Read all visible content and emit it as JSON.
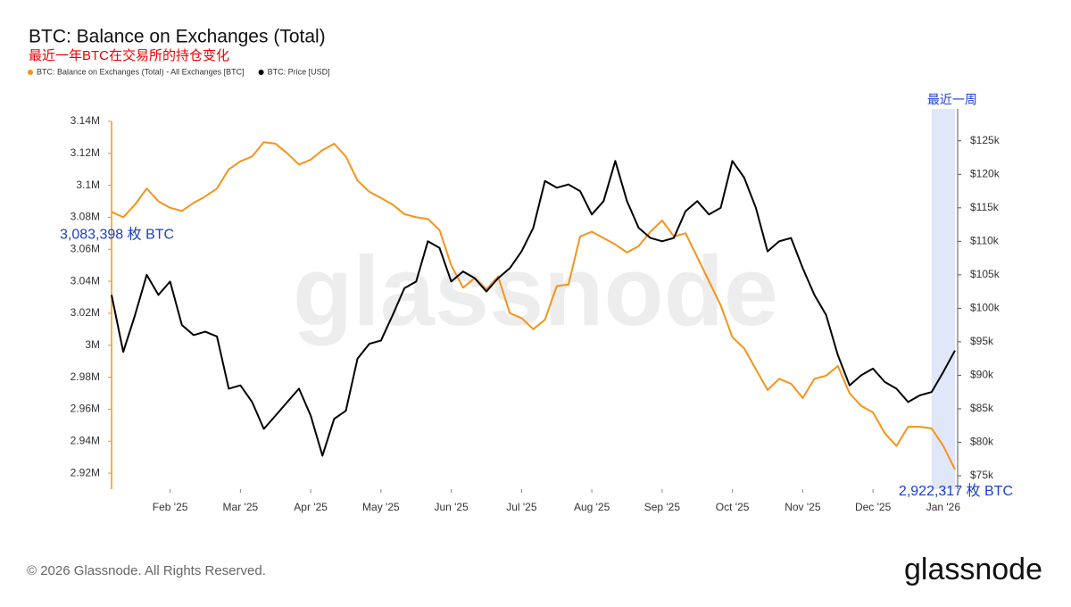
{
  "chart_data": {
    "type": "line",
    "title": "BTC: Balance on Exchanges (Total)",
    "subtitle": "最近一年BTC在交易所的持仓变化",
    "categories": [
      null,
      null,
      null,
      null,
      null,
      "Feb '25",
      null,
      null,
      null,
      null,
      null,
      "Mar '25",
      null,
      null,
      null,
      null,
      null,
      "Apr '25",
      null,
      null,
      null,
      null,
      null,
      "May '25",
      null,
      null,
      null,
      null,
      null,
      "Jun '25",
      null,
      null,
      null,
      null,
      null,
      "Jul '25",
      null,
      null,
      null,
      null,
      null,
      "Aug '25",
      null,
      null,
      null,
      null,
      null,
      "Sep '25",
      null,
      null,
      null,
      null,
      null,
      "Oct '25",
      null,
      null,
      null,
      null,
      null,
      "Nov '25",
      null,
      null,
      null,
      null,
      null,
      "Dec '25",
      null,
      null,
      null,
      null,
      null,
      "Jan '26",
      null
    ],
    "series": [
      {
        "name": "BTC: Balance on Exchanges (Total) - All Exchanges [BTC]",
        "color": "#f7931a",
        "values": [
          3083398,
          3080000,
          3088000,
          3098000,
          3090000,
          3086000,
          3084000,
          3089000,
          3093000,
          3098000,
          3110000,
          3115000,
          3118000,
          3127000,
          3126000,
          3120000,
          3113000,
          3116000,
          3122000,
          3126000,
          3118000,
          3103000,
          3096000,
          3092000,
          3088000,
          3082000,
          3080000,
          3079000,
          3072000,
          3050000,
          3036000,
          3042000,
          3035000,
          3043000,
          3020000,
          3017000,
          3010000,
          3016000,
          3037000,
          3038000,
          3068000,
          3071000,
          3067000,
          3063000,
          3058000,
          3062000,
          3071000,
          3078000,
          3068000,
          3070000,
          3055000,
          3040000,
          3025000,
          3005000,
          2998000,
          2985000,
          2972000,
          2979000,
          2976000,
          2967000,
          2979000,
          2981000,
          2987000,
          2970000,
          2962000,
          2958000,
          2945000,
          2937000,
          2949000,
          2949000,
          2948000,
          2937000,
          2922317
        ]
      },
      {
        "name": "BTC: Price [USD]",
        "color": "#000000",
        "axis": "y2",
        "values": [
          102000,
          93500,
          99000,
          105000,
          102000,
          104000,
          97500,
          96000,
          96500,
          95800,
          88000,
          88500,
          86000,
          82000,
          84000,
          86000,
          88000,
          84000,
          78000,
          83500,
          84700,
          92500,
          94700,
          95200,
          99000,
          103000,
          104000,
          110000,
          109000,
          104000,
          105500,
          104500,
          102500,
          104500,
          106000,
          108500,
          112000,
          119000,
          118000,
          118500,
          117500,
          114000,
          116000,
          122000,
          116000,
          112000,
          110500,
          110000,
          110500,
          114500,
          116000,
          114000,
          115000,
          122000,
          119500,
          115000,
          108500,
          110000,
          110500,
          106000,
          102000,
          99000,
          93000,
          88500,
          90000,
          91000,
          89000,
          88000,
          86000,
          87000,
          87500,
          90500,
          93700
        ]
      }
    ],
    "ylim": [
      2910000,
      3150000
    ],
    "yticks": [
      {
        "value": 2920000,
        "label": "2.92M"
      },
      {
        "value": 2940000,
        "label": "2.94M"
      },
      {
        "value": 2960000,
        "label": "2.96M"
      },
      {
        "value": 2980000,
        "label": "2.98M"
      },
      {
        "value": 3000000,
        "label": "3M"
      },
      {
        "value": 3020000,
        "label": "3.02M"
      },
      {
        "value": 3040000,
        "label": "3.04M"
      },
      {
        "value": 3060000,
        "label": "3.06M"
      },
      {
        "value": 3080000,
        "label": "3.08M"
      },
      {
        "value": 3100000,
        "label": "3.1M"
      },
      {
        "value": 3120000,
        "label": "3.12M"
      },
      {
        "value": 3140000,
        "label": "3.14M"
      }
    ],
    "y2lim": [
      73000,
      130300
    ],
    "y2ticks": [
      {
        "value": 75000,
        "label": "$75k"
      },
      {
        "value": 80000,
        "label": "$80k"
      },
      {
        "value": 85000,
        "label": "$85k"
      },
      {
        "value": 90000,
        "label": "$90k"
      },
      {
        "value": 95000,
        "label": "$95k"
      },
      {
        "value": 100000,
        "label": "$100k"
      },
      {
        "value": 105000,
        "label": "$105k"
      },
      {
        "value": 110000,
        "label": "$110k"
      },
      {
        "value": 115000,
        "label": "$115k"
      },
      {
        "value": 120000,
        "label": "$120k"
      },
      {
        "value": 125000,
        "label": "$125k"
      }
    ],
    "annotations": {
      "start": "3,083,398 枚 BTC",
      "end": "2,922,317 枚 BTC",
      "highlight": "最近一周"
    },
    "watermark": "glassnode"
  },
  "footer": {
    "copyright": "© 2026 Glassnode. All Rights Reserved.",
    "logo": "glassnode"
  }
}
